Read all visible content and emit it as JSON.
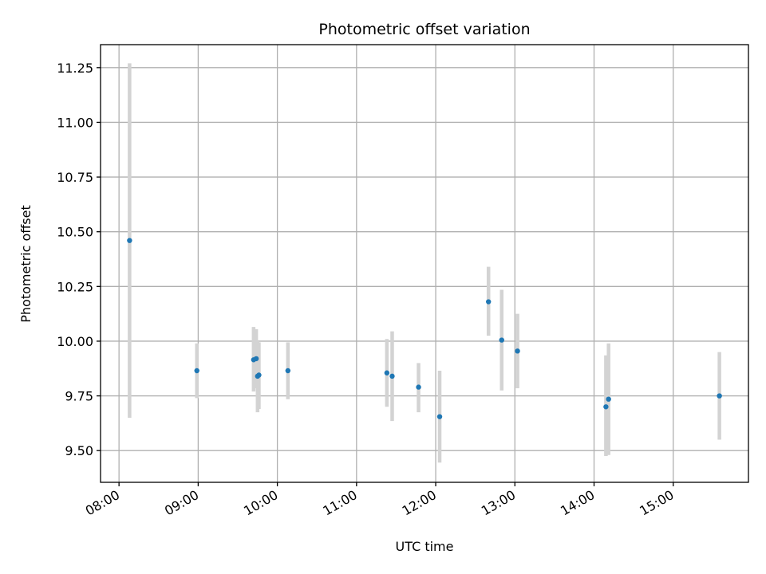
{
  "chart_data": {
    "type": "scatter",
    "title": "Photometric offset variation",
    "xlabel": "UTC time",
    "ylabel": "Photometric offset",
    "grid": true,
    "xlim": [
      "07:46",
      "15:57"
    ],
    "ylim": [
      9.355,
      11.355
    ],
    "x_ticks": [
      "08:00",
      "09:00",
      "10:00",
      "11:00",
      "12:00",
      "13:00",
      "14:00",
      "15:00"
    ],
    "y_ticks": [
      "9.50",
      "9.75",
      "10.00",
      "10.25",
      "10.50",
      "10.75",
      "11.00",
      "11.25"
    ],
    "colors": {
      "point": "#1f77b4",
      "error_bar": "#d3d3d3",
      "grid": "#b0b0b0"
    },
    "points": [
      {
        "x": "08:08",
        "y": 10.46,
        "y_low": 9.65,
        "y_high": 11.27
      },
      {
        "x": "08:59",
        "y": 9.865,
        "y_low": 9.74,
        "y_high": 9.99
      },
      {
        "x": "09:42",
        "y": 9.915,
        "y_low": 9.77,
        "y_high": 10.065
      },
      {
        "x": "09:44",
        "y": 9.92,
        "y_low": 9.785,
        "y_high": 10.055
      },
      {
        "x": "09:45",
        "y": 9.84,
        "y_low": 9.675,
        "y_high": 10.0
      },
      {
        "x": "09:46",
        "y": 9.845,
        "y_low": 9.69,
        "y_high": 9.995
      },
      {
        "x": "10:08",
        "y": 9.865,
        "y_low": 9.735,
        "y_high": 9.995
      },
      {
        "x": "11:23",
        "y": 9.855,
        "y_low": 9.7,
        "y_high": 10.01
      },
      {
        "x": "11:27",
        "y": 9.84,
        "y_low": 9.635,
        "y_high": 10.045
      },
      {
        "x": "11:47",
        "y": 9.79,
        "y_low": 9.675,
        "y_high": 9.9
      },
      {
        "x": "12:03",
        "y": 9.655,
        "y_low": 9.445,
        "y_high": 9.865
      },
      {
        "x": "12:40",
        "y": 10.18,
        "y_low": 10.025,
        "y_high": 10.34
      },
      {
        "x": "12:50",
        "y": 10.005,
        "y_low": 9.775,
        "y_high": 10.235
      },
      {
        "x": "13:02",
        "y": 9.955,
        "y_low": 9.785,
        "y_high": 10.125
      },
      {
        "x": "14:09",
        "y": 9.7,
        "y_low": 9.475,
        "y_high": 9.935
      },
      {
        "x": "14:11",
        "y": 9.735,
        "y_low": 9.48,
        "y_high": 9.99
      },
      {
        "x": "15:35",
        "y": 9.75,
        "y_low": 9.55,
        "y_high": 9.95
      }
    ]
  }
}
